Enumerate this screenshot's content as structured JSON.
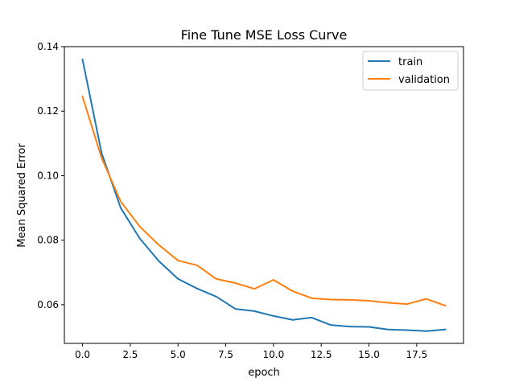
{
  "chart_data": {
    "type": "line",
    "title": "Fine Tune MSE Loss Curve",
    "xlabel": "epoch",
    "ylabel": "Mean Squared Error",
    "xlim": [
      -0.95,
      19.95
    ],
    "ylim": [
      0.048,
      0.14
    ],
    "x_ticks": [
      0,
      2.5,
      5,
      7.5,
      10,
      12.5,
      15,
      17.5
    ],
    "x_tick_labels": [
      "0.0",
      "2.5",
      "5.0",
      "7.5",
      "10.0",
      "12.5",
      "15.0",
      "17.5"
    ],
    "y_ticks": [
      0.06,
      0.08,
      0.1,
      0.12,
      0.14
    ],
    "y_tick_labels": [
      "0.06",
      "0.08",
      "0.10",
      "0.12",
      "0.14"
    ],
    "grid": false,
    "legend_position": "top-right",
    "x": [
      0,
      1,
      2,
      3,
      4,
      5,
      6,
      7,
      8,
      9,
      10,
      11,
      12,
      13,
      14,
      15,
      16,
      17,
      18,
      19
    ],
    "series": [
      {
        "name": "train",
        "color": "#1f77b4",
        "values": [
          0.136,
          0.107,
          0.09,
          0.0805,
          0.0735,
          0.068,
          0.065,
          0.0625,
          0.0587,
          0.058,
          0.0565,
          0.0553,
          0.056,
          0.0537,
          0.0532,
          0.0531,
          0.0523,
          0.0521,
          0.0518,
          0.0523
        ]
      },
      {
        "name": "validation",
        "color": "#ff7f0e",
        "values": [
          0.1245,
          0.1055,
          0.092,
          0.0842,
          0.0785,
          0.0737,
          0.0722,
          0.068,
          0.0667,
          0.0649,
          0.0677,
          0.0642,
          0.062,
          0.0616,
          0.0615,
          0.0612,
          0.0606,
          0.0602,
          0.0618,
          0.0597
        ]
      }
    ]
  }
}
